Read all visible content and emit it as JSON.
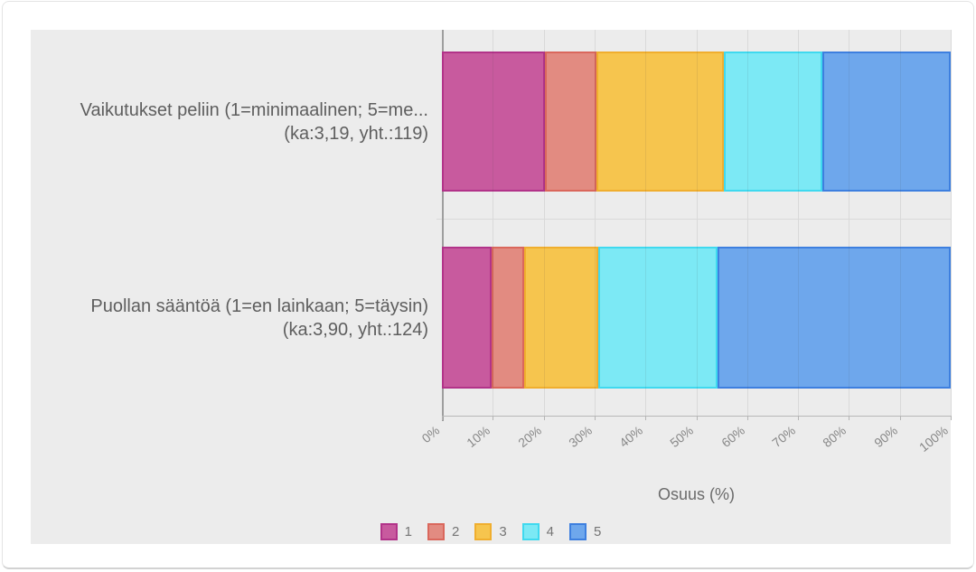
{
  "page": {
    "background": "#ffffff",
    "border_color": "#e4e4e4"
  },
  "panel": {
    "background": "#ececec"
  },
  "chart_data": {
    "type": "bar",
    "orientation": "horizontal",
    "stacked": true,
    "xlabel": "Osuus (%)",
    "x_range": [
      0,
      100
    ],
    "x_ticks": [
      "0%",
      "10%",
      "20%",
      "30%",
      "40%",
      "50%",
      "60%",
      "70%",
      "80%",
      "90%",
      "100%"
    ],
    "grid": true,
    "legend_position": "bottom",
    "categories": [
      {
        "line1": "Vaikutukset peliin (1=minimaalinen; 5=me...",
        "line2": "(ka:3,19, yht.:119)"
      },
      {
        "line1": "Puollan sääntöä (1=en lainkaan; 5=täysin)",
        "line2": "(ka:3,90, yht.:124)"
      }
    ],
    "series": [
      {
        "name": "1",
        "fill": "#c85a9e",
        "border": "#b23389",
        "values": [
          20.2,
          9.7
        ]
      },
      {
        "name": "2",
        "fill": "#e28b81",
        "border": "#da675c",
        "values": [
          10.1,
          6.5
        ]
      },
      {
        "name": "3",
        "fill": "#f6c54e",
        "border": "#f0ae2e",
        "values": [
          25.2,
          14.5
        ]
      },
      {
        "name": "4",
        "fill": "#7ce9f5",
        "border": "#3fd9ef",
        "values": [
          19.3,
          23.4
        ]
      },
      {
        "name": "5",
        "fill": "#6ea7ec",
        "border": "#3d7fdf",
        "values": [
          25.2,
          45.9
        ]
      }
    ]
  }
}
